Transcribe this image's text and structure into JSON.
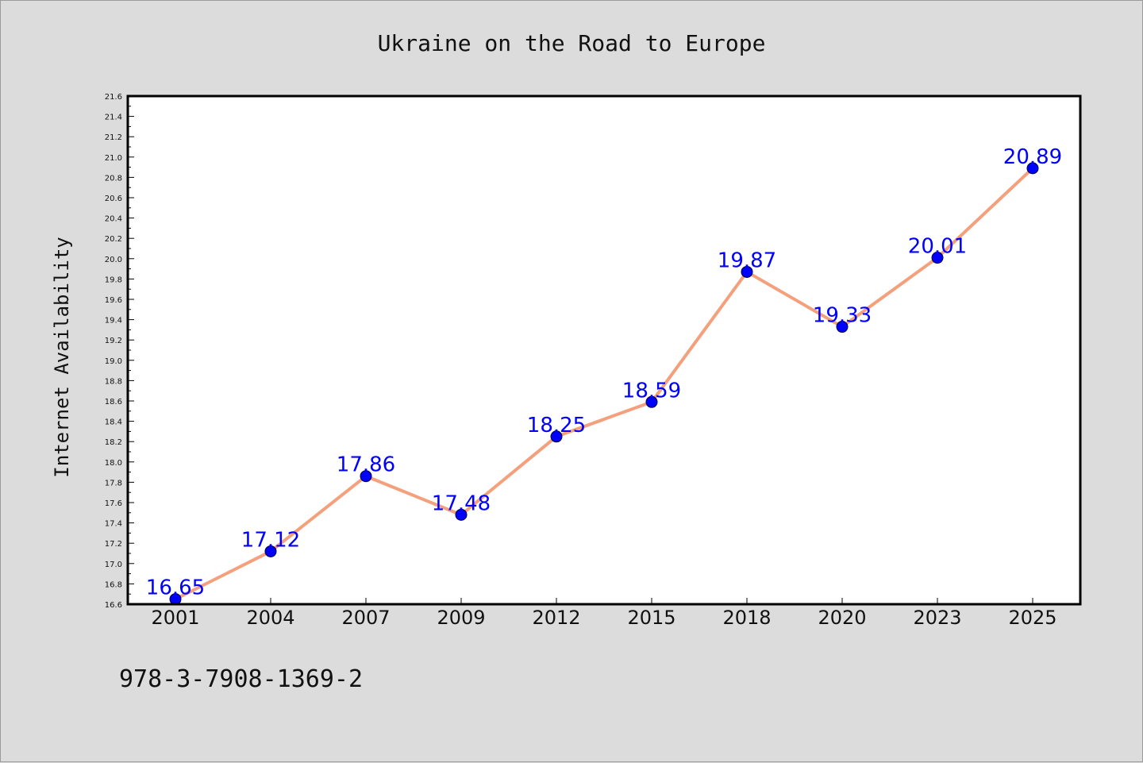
{
  "chart_data": {
    "type": "line",
    "title": "Ukraine on the Road to Europe",
    "xlabel": "",
    "ylabel": "Internet Availability",
    "categories": [
      "2001",
      "2004",
      "2007",
      "2009",
      "2012",
      "2015",
      "2018",
      "2020",
      "2023",
      "2025"
    ],
    "series": [
      {
        "values": [
          16.65,
          17.12,
          17.86,
          17.48,
          18.25,
          18.59,
          19.87,
          19.33,
          20.01,
          20.89
        ]
      }
    ],
    "data_labels": [
      "16.65",
      "17.12",
      "17.86",
      "17.48",
      "18.25",
      "18.59",
      "19.87",
      "19.33",
      "20.01",
      "20.89"
    ],
    "ylim": [
      16.6,
      21.6
    ],
    "yticks": [
      "16.6",
      "16.8",
      "17.0",
      "17.2",
      "17.4",
      "17.6",
      "17.8",
      "18.0",
      "18.2",
      "18.4",
      "18.6",
      "18.8",
      "19.0",
      "19.2",
      "19.4",
      "19.6",
      "19.8",
      "20.0",
      "20.2",
      "20.4",
      "20.6",
      "20.8",
      "21.0",
      "21.2",
      "21.4",
      "21.6"
    ],
    "grid": false,
    "line_color": "#f4a07c",
    "marker_color": "#0000ff",
    "label_color": "#0000ff"
  },
  "footer": {
    "isbn": "978-3-7908-1369-2"
  }
}
